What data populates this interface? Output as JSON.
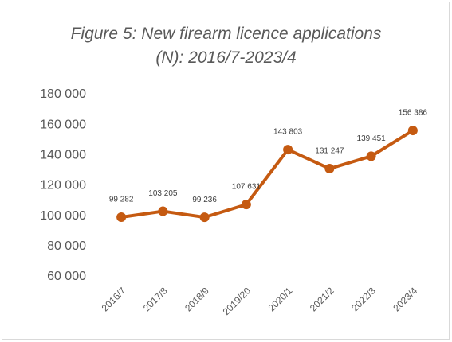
{
  "chart_data": {
    "type": "line",
    "title": "Figure 5: New firearm licence applications (N): 2016/7-2023/4",
    "categories": [
      "2016/7",
      "2017/8",
      "2018/9",
      "2019/20",
      "2020/1",
      "2021/2",
      "2022/3",
      "2023/4"
    ],
    "values": [
      99282,
      103205,
      99236,
      107631,
      143803,
      131247,
      139451,
      156386
    ],
    "value_labels": [
      "99 282",
      "103 205",
      "99 236",
      "107 631",
      "143 803",
      "131 247",
      "139 451",
      "156 386"
    ],
    "color": "#c55a11",
    "ylim": [
      60000,
      180000
    ],
    "yticks": [
      {
        "value": 60000,
        "label": "60 000"
      },
      {
        "value": 80000,
        "label": "80 000"
      },
      {
        "value": 100000,
        "label": "100 000"
      },
      {
        "value": 120000,
        "label": "120 000"
      },
      {
        "value": 140000,
        "label": "140 000"
      },
      {
        "value": 160000,
        "label": "160 000"
      },
      {
        "value": 180000,
        "label": "180 000"
      }
    ],
    "grid": false
  }
}
